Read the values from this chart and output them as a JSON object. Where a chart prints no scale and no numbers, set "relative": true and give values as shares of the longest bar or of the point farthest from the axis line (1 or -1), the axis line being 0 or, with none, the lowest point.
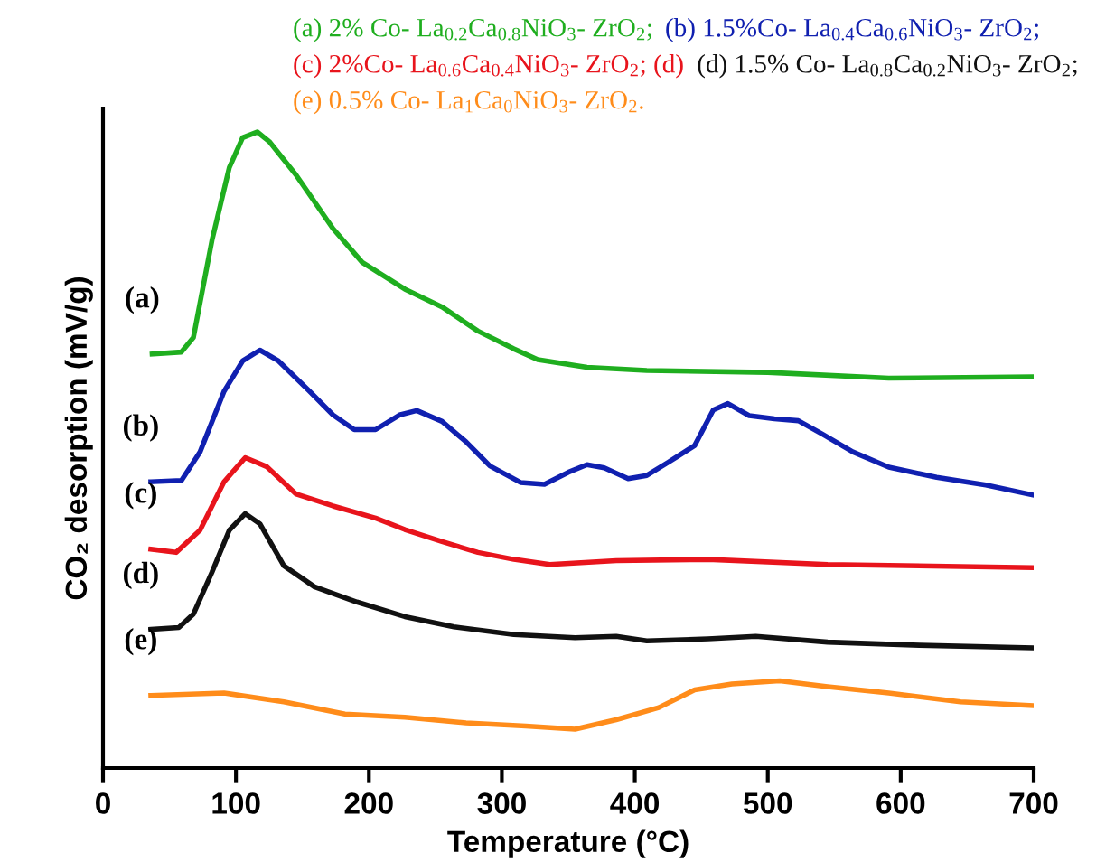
{
  "chart_data": {
    "type": "line",
    "relative": true,
    "xlabel": "Temperature (°C)",
    "ylabel": "CO₂ desorption (mV/g)",
    "xlim": [
      0,
      700
    ],
    "xticks": [
      0,
      100,
      200,
      300,
      400,
      500,
      600,
      700
    ],
    "grid": false,
    "marker": "none",
    "line_style": "solid",
    "series": [
      {
        "name": "(a) 2% Co- La$_{0.2}$Ca$_{0.8}$NiO$_{3}$- ZrO$_{2}$;",
        "color": "#1fae1f",
        "x": [
          37,
          59,
          68,
          82,
          95,
          105,
          116,
          125,
          145,
          173,
          195,
          227,
          255,
          282,
          309,
          327,
          364,
          409,
          500,
          591,
          700
        ],
        "values": [
          0.651,
          0.654,
          0.677,
          0.83,
          0.944,
          0.991,
          1.0,
          0.985,
          0.933,
          0.848,
          0.795,
          0.753,
          0.725,
          0.687,
          0.659,
          0.642,
          0.63,
          0.625,
          0.622,
          0.613,
          0.615
        ]
      },
      {
        "name": "(b) 1.5%Co- La$_{0.4}$Ca$_{0.6}$NiO$_{3}$- ZrO$_{2}$;",
        "color": "#1020b0",
        "x": [
          36,
          59,
          73,
          91,
          105,
          118,
          132,
          155,
          173,
          189,
          205,
          223,
          236,
          255,
          273,
          291,
          314,
          332,
          350,
          364,
          377,
          395,
          409,
          427,
          445,
          459,
          470,
          486,
          505,
          523,
          541,
          564,
          591,
          627,
          664,
          700
        ],
        "values": [
          0.45,
          0.452,
          0.497,
          0.592,
          0.64,
          0.657,
          0.64,
          0.593,
          0.555,
          0.532,
          0.532,
          0.555,
          0.562,
          0.545,
          0.513,
          0.475,
          0.449,
          0.446,
          0.465,
          0.477,
          0.472,
          0.455,
          0.46,
          0.483,
          0.507,
          0.563,
          0.573,
          0.554,
          0.549,
          0.546,
          0.525,
          0.497,
          0.473,
          0.457,
          0.445,
          0.429
        ]
      },
      {
        "name": "(c) 2%Co- La$_{0.6}$Ca$_{0.4}$NiO$_{3}$- ZrO$_{2}$; (d)",
        "color": "#e8141c",
        "x": [
          36,
          55,
          73,
          91,
          107,
          123,
          145,
          173,
          205,
          227,
          255,
          282,
          309,
          336,
          386,
          455,
          545,
          700
        ],
        "values": [
          0.344,
          0.339,
          0.374,
          0.45,
          0.488,
          0.474,
          0.431,
          0.412,
          0.393,
          0.375,
          0.356,
          0.339,
          0.328,
          0.32,
          0.326,
          0.328,
          0.32,
          0.315
        ]
      },
      {
        "name": "(d) 1.5% Co- La$_{0.8}$Ca$_{0.2}$NiO$_{3}$- ZrO$_{2}$;",
        "color": "#111111",
        "x": [
          36,
          57,
          68,
          82,
          95,
          107,
          118,
          136,
          159,
          191,
          227,
          264,
          309,
          355,
          386,
          409,
          455,
          491,
          545,
          614,
          700
        ],
        "values": [
          0.218,
          0.221,
          0.242,
          0.308,
          0.374,
          0.4,
          0.384,
          0.318,
          0.285,
          0.261,
          0.238,
          0.222,
          0.21,
          0.205,
          0.207,
          0.2,
          0.203,
          0.207,
          0.198,
          0.193,
          0.189
        ]
      },
      {
        "name": "(e) 0.5% Co- La$_{1}$Ca$_{0}$NiO$_{3}$- ZrO$_{2}$.",
        "color": "#ff8c1a",
        "x": [
          36,
          91,
          136,
          182,
          227,
          273,
          318,
          355,
          386,
          418,
          445,
          473,
          509,
          545,
          591,
          645,
          700
        ],
        "values": [
          0.114,
          0.118,
          0.104,
          0.085,
          0.08,
          0.071,
          0.066,
          0.061,
          0.076,
          0.095,
          0.123,
          0.132,
          0.137,
          0.128,
          0.118,
          0.104,
          0.098
        ]
      }
    ],
    "annotations": [
      "(a)",
      "(b)",
      "(c)",
      "(d)",
      "(e)"
    ]
  }
}
